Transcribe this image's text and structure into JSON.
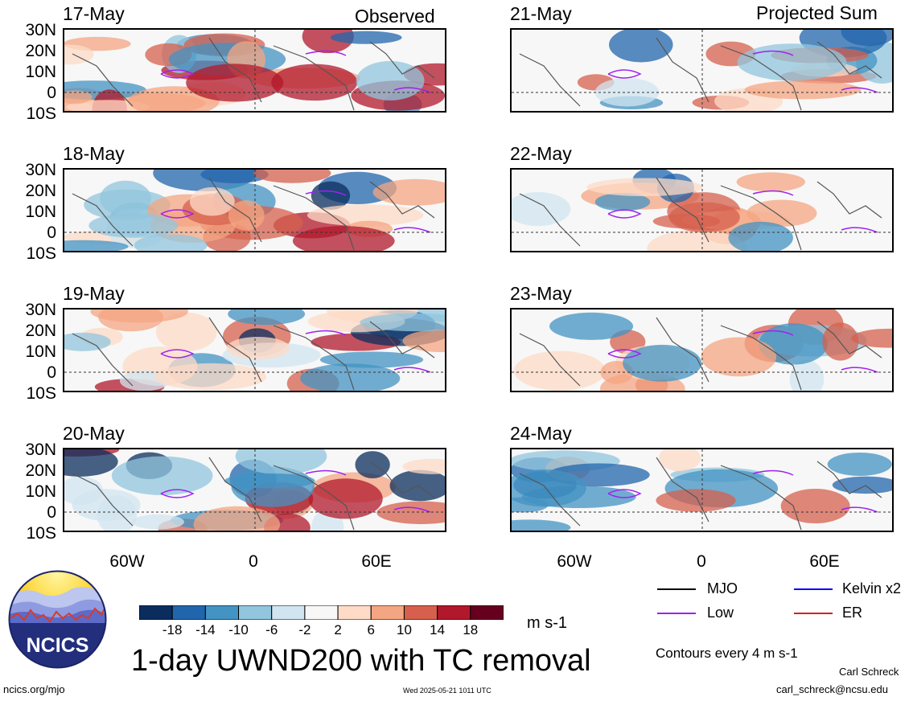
{
  "columns": {
    "left_title": "Observed",
    "right_title": "Projected Sum"
  },
  "panels_left": [
    {
      "date": "17-May"
    },
    {
      "date": "18-May"
    },
    {
      "date": "19-May"
    },
    {
      "date": "20-May"
    }
  ],
  "panels_right": [
    {
      "date": "21-May"
    },
    {
      "date": "22-May"
    },
    {
      "date": "23-May"
    },
    {
      "date": "24-May"
    }
  ],
  "axes": {
    "lat_labels": [
      "30N",
      "20N",
      "10N",
      "0",
      "10S"
    ],
    "lon_labels": [
      "60W",
      "0",
      "60E"
    ]
  },
  "colorbar": {
    "ticks": [
      "-18",
      "-14",
      "-10",
      "-6",
      "-2",
      "2",
      "6",
      "10",
      "14",
      "18"
    ],
    "colors": [
      "#0b2d5e",
      "#2166ac",
      "#4393c3",
      "#92c5de",
      "#d1e5f0",
      "#f7f7f7",
      "#fddbc7",
      "#f4a582",
      "#d6604d",
      "#b2182b",
      "#67001f"
    ],
    "units": "m s-1"
  },
  "legend": {
    "items": [
      {
        "label": "MJO",
        "color": "#000000"
      },
      {
        "label": "Kelvin x2",
        "color": "#0000ff"
      },
      {
        "label": "Low",
        "color": "#a020f0"
      },
      {
        "label": "ER",
        "color": "#d42020"
      }
    ],
    "contour_note": "Contours every 4 m s-1"
  },
  "footer": {
    "title": "1-day UWND200 with TC removal",
    "logo_text": "NCICS",
    "site": "ncics.org/mjo",
    "timestamp": "Wed 2025-05-21 1011 UTC",
    "author": "Carl Schreck",
    "email": "carl_schreck@ncsu.edu"
  }
}
